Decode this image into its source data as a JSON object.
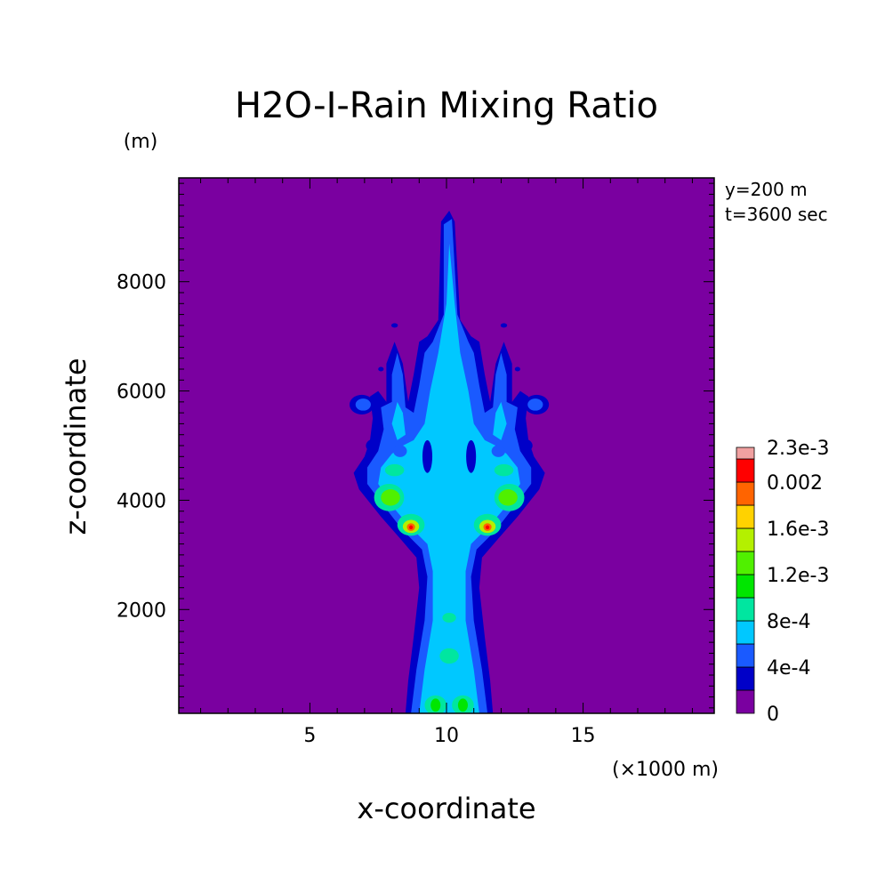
{
  "chart_data": {
    "type": "heatmap",
    "title": "H2O-I-Rain Mixing Ratio",
    "xlabel": "x-coordinate",
    "ylabel": "z-coordinate",
    "x_unit": "(×1000 m)",
    "y_unit": "(m)",
    "annotations": [
      "y=200 m",
      "t=3600 sec"
    ],
    "xlim": [
      0.2,
      19.8
    ],
    "ylim": [
      100,
      9900
    ],
    "x_ticks": [
      5,
      10,
      15
    ],
    "y_ticks": [
      2000,
      4000,
      6000,
      8000
    ],
    "grid": false,
    "legend": "right-colorbar",
    "colorbar": {
      "levels": [
        0,
        0.0002,
        0.0004,
        0.0006,
        0.0008,
        0.001,
        0.0012,
        0.0014,
        0.0016,
        0.0018,
        0.002,
        0.0022,
        0.0023
      ],
      "labels": [
        {
          "level": 0,
          "text": "0"
        },
        {
          "level": 0.0004,
          "text": "4e-4"
        },
        {
          "level": 0.0008,
          "text": "8e-4"
        },
        {
          "level": 0.0012,
          "text": "1.2e-3"
        },
        {
          "level": 0.0016,
          "text": "1.6e-3"
        },
        {
          "level": 0.002,
          "text": "0.002"
        },
        {
          "level": 0.0023,
          "text": "2.3e-3"
        }
      ],
      "colors": [
        "#7a00a0",
        "#0000c8",
        "#1a5aff",
        "#00c8ff",
        "#00e6a0",
        "#00e600",
        "#50f000",
        "#b4f000",
        "#ffd200",
        "#ff6400",
        "#ff0000",
        "#f0a0a0"
      ]
    },
    "field": {
      "description_units": "mixing ratio (kg/kg) vs x (×1000 m) and z (m)",
      "max_value": 0.0021
    }
  }
}
